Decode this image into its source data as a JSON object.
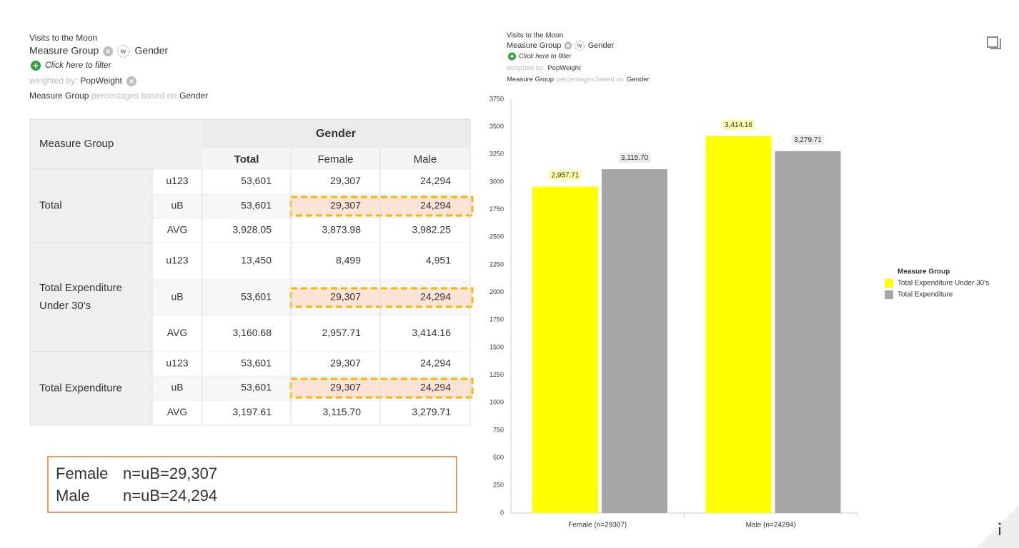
{
  "left": {
    "title": "Visits to the Moon",
    "row_var": "Measure Group",
    "by_icon": "by",
    "col_var": "Gender",
    "filter": "Click here to filter",
    "weighted_label": "weighted by:",
    "weight": "PopWeight",
    "pct_row": "Measure Group",
    "pct_text": "percentages based on",
    "pct_col": "Gender"
  },
  "table": {
    "corner": "Measure Group",
    "column_group": "Gender",
    "columns": [
      "Total",
      "Female",
      "Male"
    ],
    "groups": [
      {
        "label": [
          "Total"
        ],
        "rows": [
          {
            "stat": "u123",
            "cells": [
              "53,601",
              "29,307",
              "24,294"
            ]
          },
          {
            "stat": "uB",
            "cells": [
              "53,601",
              "29,307",
              "24,294"
            ]
          },
          {
            "stat": "AVG",
            "cells": [
              "3,928.05",
              "3,873.98",
              "3,982.25"
            ]
          }
        ]
      },
      {
        "label": [
          "Total Expenditure",
          "Under 30's"
        ],
        "rows": [
          {
            "stat": "u123",
            "cells": [
              "13,450",
              "8,499",
              "4,951"
            ]
          },
          {
            "stat": "uB",
            "cells": [
              "53,601",
              "29,307",
              "24,294"
            ]
          },
          {
            "stat": "AVG",
            "cells": [
              "3,160.68",
              "2,957.71",
              "3,414.16"
            ]
          }
        ]
      },
      {
        "label": [
          "Total Expenditure"
        ],
        "rows": [
          {
            "stat": "u123",
            "cells": [
              "53,601",
              "29,307",
              "24,294"
            ]
          },
          {
            "stat": "uB",
            "cells": [
              "53,601",
              "29,307",
              "24,294"
            ]
          },
          {
            "stat": "AVG",
            "cells": [
              "3,197.61",
              "3,115.70",
              "3,279.71"
            ]
          }
        ]
      }
    ]
  },
  "note": {
    "lines": [
      {
        "label": "Female",
        "text": "n=uB=29,307"
      },
      {
        "label": "Male",
        "text": "n=uB=24,294"
      }
    ]
  },
  "chart_data": {
    "type": "bar",
    "title": "Visits to the Moon",
    "row_var": "Measure Group",
    "by_icon": "by",
    "col_var": "Gender",
    "filter": "Click here to filter",
    "weighted_label": "weighted by:",
    "weight": "PopWeight",
    "pct_row": "Measure Group",
    "pct_text": "percentages based on",
    "pct_col": "Gender",
    "categories": [
      "Female (n=29307)",
      "Male (n=24294)"
    ],
    "series": [
      {
        "name": "Total Expenditure Under 30's",
        "color": "#ffff00",
        "values": [
          2957.71,
          3414.16
        ],
        "value_labels": [
          "2,957.71",
          "3,414.16"
        ]
      },
      {
        "name": "Total Expenditure",
        "color": "#a6a6a6",
        "values": [
          3115.7,
          3279.71
        ],
        "value_labels": [
          "3,115.70",
          "3,279.71"
        ]
      }
    ],
    "ylim": [
      0,
      3750
    ],
    "yticks": [
      0,
      250,
      500,
      750,
      1000,
      1250,
      1500,
      1750,
      2000,
      2250,
      2500,
      2750,
      3000,
      3250,
      3500,
      3750
    ],
    "legend_title": "Measure Group",
    "legend_position": "right"
  }
}
